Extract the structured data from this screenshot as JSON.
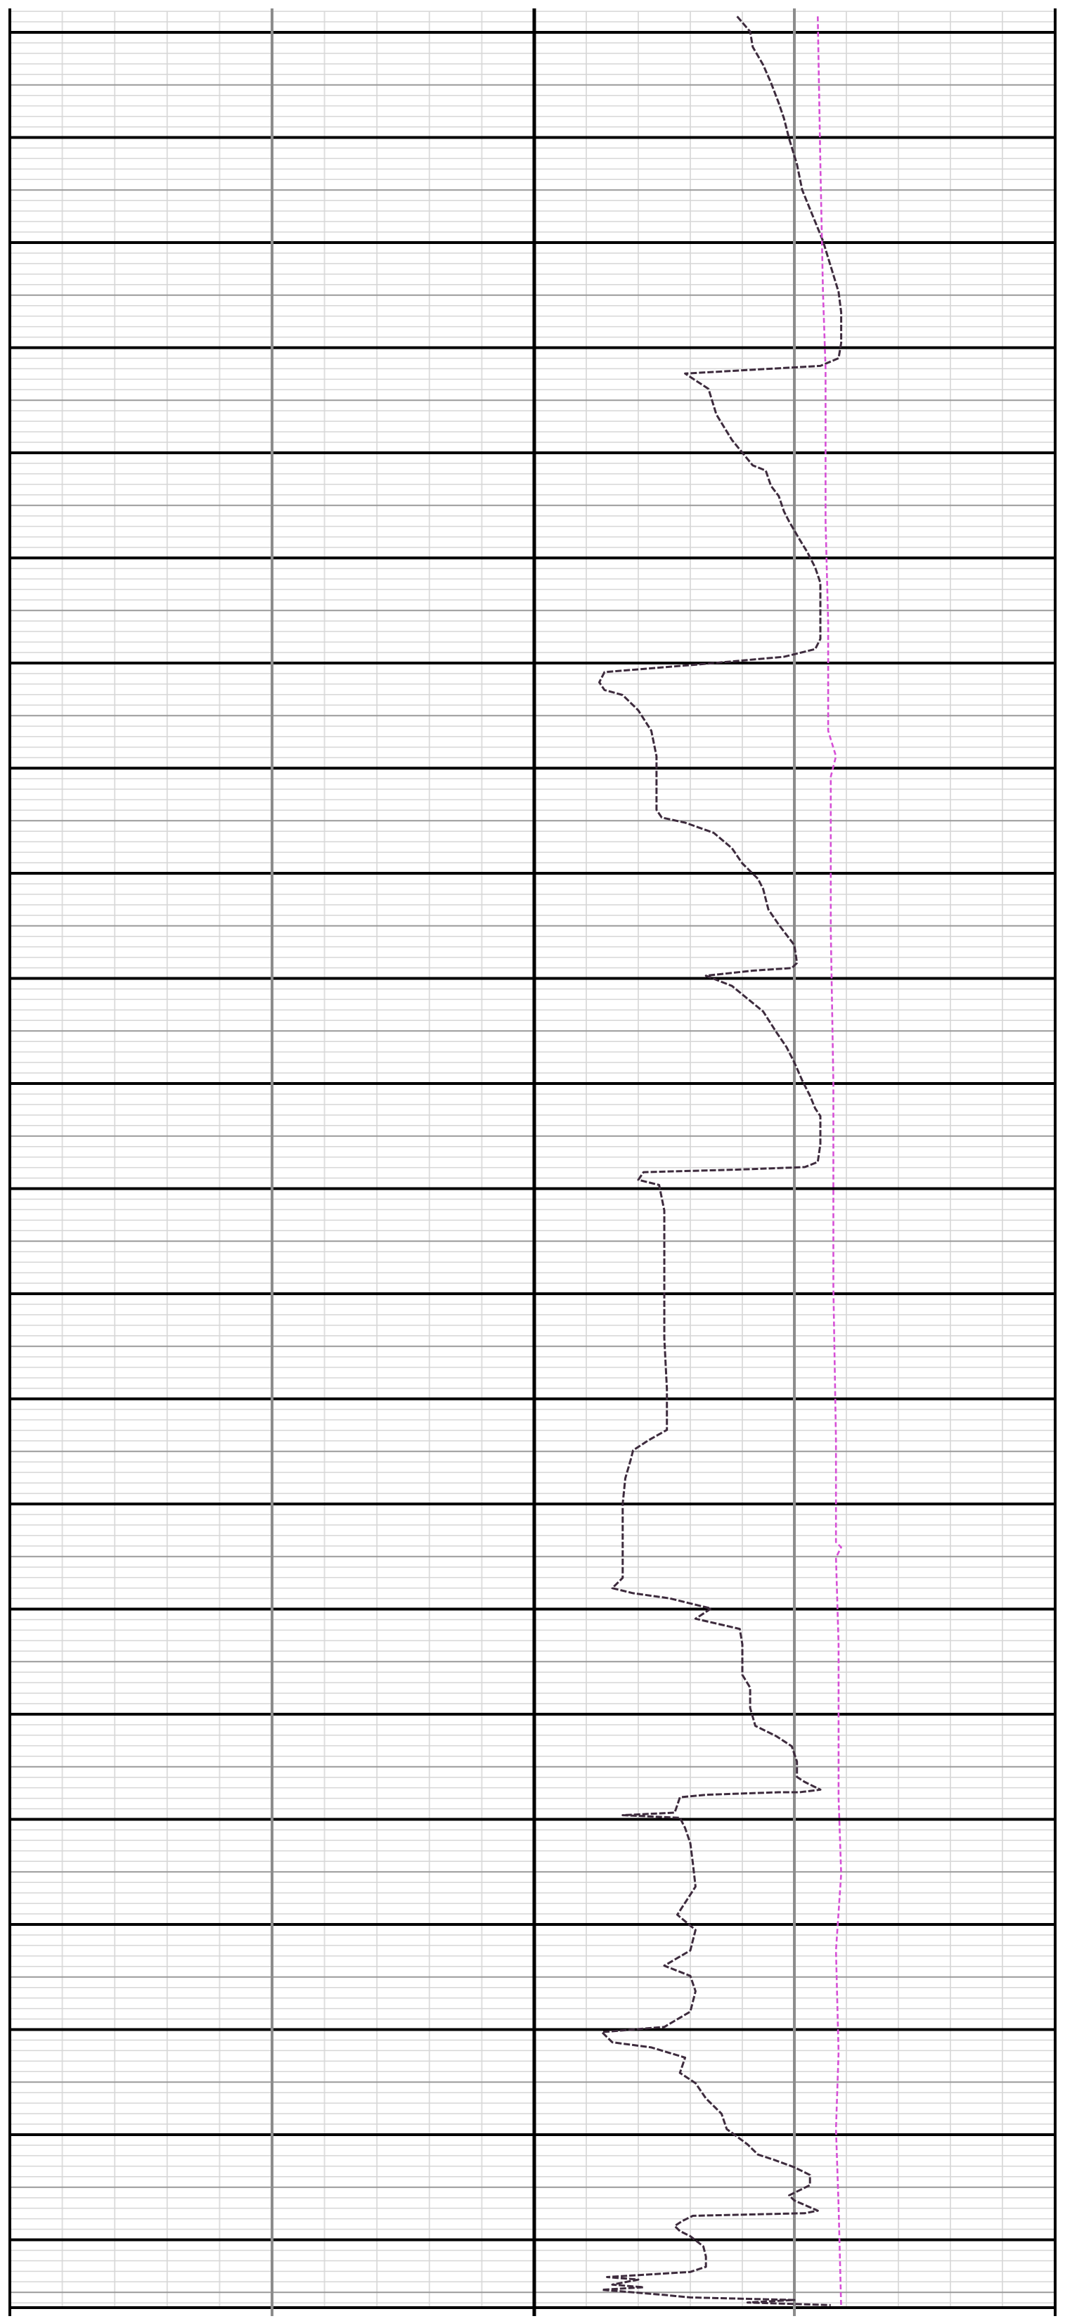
{
  "chart_data": {
    "type": "line",
    "title": "",
    "xlabel": "",
    "ylabel": "",
    "grid": true,
    "legend": "none",
    "xlim": [
      0,
      200
    ],
    "ylim": [
      0,
      1000
    ],
    "y_inverted": true,
    "colors": {
      "background": "#ffffff",
      "grid_major": "#000000",
      "grid_minor": "#9a9a9a",
      "grid_fine": "#d6d6d6",
      "grid_vertical_mid": "#8c8c8c",
      "grid_vertical_fine": "#dedede",
      "series_curve": "#3d2b3d",
      "series_reference": "#d64fd6"
    },
    "series": [
      {
        "style": "dashed",
        "color": "#3d2b3d",
        "points": [
          [
            78,
            2
          ],
          [
            83,
            8
          ],
          [
            84,
            14
          ],
          [
            88,
            21
          ],
          [
            91,
            28
          ],
          [
            94,
            36
          ],
          [
            96,
            42
          ],
          [
            98,
            50
          ],
          [
            101,
            60
          ],
          [
            103,
            70
          ],
          [
            107,
            80
          ],
          [
            111,
            90
          ],
          [
            114,
            100
          ],
          [
            117,
            110
          ],
          [
            118,
            118
          ],
          [
            118,
            130
          ],
          [
            117,
            136
          ],
          [
            110,
            139
          ],
          [
            58,
            142
          ],
          [
            67,
            148
          ],
          [
            70,
            158
          ],
          [
            76,
            168
          ],
          [
            84,
            178
          ],
          [
            89,
            180
          ],
          [
            91,
            186
          ],
          [
            94,
            190
          ],
          [
            96,
            196
          ],
          [
            98,
            200
          ],
          [
            102,
            207
          ],
          [
            105,
            212
          ],
          [
            108,
            218
          ],
          [
            110,
            224
          ],
          [
            110,
            233
          ],
          [
            110,
            246
          ],
          [
            108,
            250
          ],
          [
            96,
            253
          ],
          [
            63,
            256
          ],
          [
            27,
            259
          ],
          [
            25,
            263
          ],
          [
            27,
            266
          ],
          [
            34,
            268
          ],
          [
            40,
            274
          ],
          [
            45,
            282
          ],
          [
            47,
            292
          ],
          [
            47,
            305
          ],
          [
            47,
            313
          ],
          [
            49,
            316
          ],
          [
            58,
            318
          ],
          [
            69,
            322
          ],
          [
            76,
            328
          ],
          [
            80,
            334
          ],
          [
            86,
            340
          ],
          [
            88,
            344
          ],
          [
            90,
            352
          ],
          [
            94,
            358
          ],
          [
            97,
            362
          ],
          [
            100,
            366
          ],
          [
            101,
            373
          ],
          [
            99,
            375
          ],
          [
            84,
            376
          ],
          [
            66,
            378
          ],
          [
            76,
            382
          ],
          [
            82,
            387
          ],
          [
            88,
            392
          ],
          [
            93,
            400
          ],
          [
            97,
            406
          ],
          [
            100,
            412
          ],
          [
            103,
            419
          ],
          [
            106,
            425
          ],
          [
            108,
            430
          ],
          [
            110,
            433
          ],
          [
            110,
            444
          ],
          [
            109,
            451
          ],
          [
            104,
            453
          ],
          [
            78,
            454
          ],
          [
            42,
            455
          ],
          [
            40,
            458
          ],
          [
            48,
            460
          ],
          [
            50,
            470
          ],
          [
            50,
            480
          ],
          [
            50,
            500
          ],
          [
            50,
            520
          ],
          [
            51,
            540
          ],
          [
            51,
            556
          ],
          [
            44,
            560
          ],
          [
            38,
            564
          ],
          [
            37,
            568
          ],
          [
            35,
            575
          ],
          [
            34,
            585
          ],
          [
            34,
            600
          ],
          [
            34,
            614
          ],
          [
            30,
            618
          ],
          [
            38,
            620
          ],
          [
            52,
            622
          ],
          [
            68,
            626
          ],
          [
            62,
            630
          ],
          [
            79,
            634
          ],
          [
            80,
            640
          ],
          [
            80,
            652
          ],
          [
            83,
            657
          ],
          [
            83,
            665
          ],
          [
            85,
            672
          ],
          [
            93,
            676
          ],
          [
            99,
            680
          ],
          [
            101,
            686
          ],
          [
            101,
            692
          ],
          [
            104,
            694
          ],
          [
            110,
            697
          ],
          [
            102,
            698
          ],
          [
            94,
            698
          ],
          [
            66,
            699
          ],
          [
            56,
            700
          ],
          [
            54,
            706
          ],
          [
            34,
            707
          ],
          [
            56,
            708
          ],
          [
            58,
            712
          ],
          [
            60,
            718
          ],
          [
            61,
            726
          ],
          [
            62,
            735
          ],
          [
            55,
            746
          ],
          [
            62,
            752
          ],
          [
            60,
            760
          ],
          [
            50,
            766
          ],
          [
            60,
            770
          ],
          [
            62,
            776
          ],
          [
            60,
            784
          ],
          [
            50,
            790
          ],
          [
            26,
            792
          ],
          [
            30,
            796
          ],
          [
            45,
            798
          ],
          [
            58,
            802
          ],
          [
            56,
            808
          ],
          [
            62,
            812
          ],
          [
            66,
            818
          ],
          [
            72,
            824
          ],
          [
            74,
            830
          ],
          [
            82,
            836
          ],
          [
            86,
            840
          ],
          [
            92,
            842
          ],
          [
            100,
            845
          ],
          [
            106,
            848
          ],
          [
            106,
            852
          ],
          [
            98,
            856
          ],
          [
            100,
            858
          ],
          [
            109,
            862
          ],
          [
            104,
            863
          ],
          [
            61,
            864
          ],
          [
            57,
            866
          ],
          [
            54,
            868
          ],
          [
            56,
            870
          ],
          [
            60,
            872
          ],
          [
            65,
            876
          ],
          [
            66,
            880
          ],
          [
            66,
            884
          ],
          [
            60,
            886
          ],
          [
            28,
            888
          ],
          [
            40,
            889
          ],
          [
            30,
            891
          ],
          [
            42,
            892
          ],
          [
            26,
            893
          ],
          [
            50,
            895
          ],
          [
            60,
            896
          ],
          [
            100,
            897
          ],
          [
            82,
            898
          ],
          [
            114,
            899
          ]
        ]
      },
      {
        "style": "dashed",
        "color": "#d64fd6",
        "points": [
          [
            109,
            2
          ],
          [
            110,
            60
          ],
          [
            111,
            110
          ],
          [
            112,
            140
          ],
          [
            112,
            200
          ],
          [
            113,
            240
          ],
          [
            113,
            282
          ],
          [
            116,
            292
          ],
          [
            114,
            300
          ],
          [
            114,
            360
          ],
          [
            115,
            420
          ],
          [
            115,
            500
          ],
          [
            116,
            560
          ],
          [
            116,
            600
          ],
          [
            118,
            602
          ],
          [
            116,
            606
          ],
          [
            117,
            640
          ],
          [
            117,
            700
          ],
          [
            118,
            730
          ],
          [
            116,
            760
          ],
          [
            117,
            800
          ],
          [
            116,
            830
          ],
          [
            117,
            860
          ],
          [
            118,
            900
          ]
        ]
      }
    ]
  }
}
